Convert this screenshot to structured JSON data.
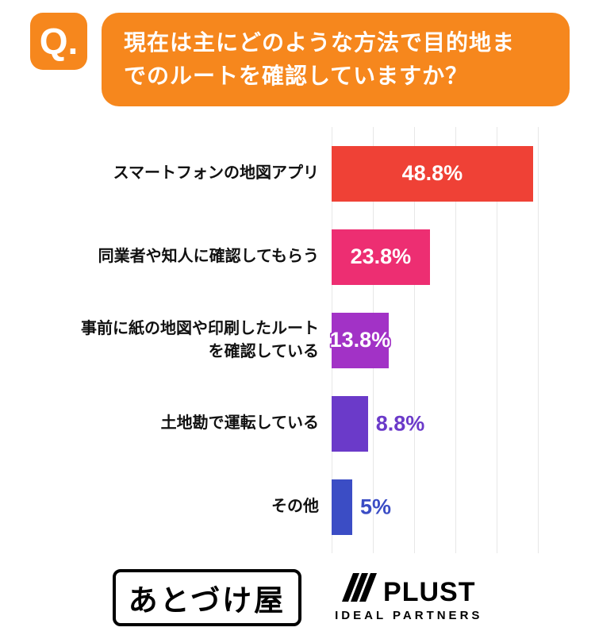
{
  "header": {
    "q_label": "Q.",
    "title": "現在は主にどのような方法で目的地ま\nでのルートを確認していますか？"
  },
  "chart_data": {
    "type": "bar",
    "orientation": "horizontal",
    "title": "現在は主にどのような方法で目的地までのルートを確認していますか？",
    "categories": [
      "スマートフォンの地図アプリ",
      "同業者や知人に確認してもらう",
      "事前に紙の地図や印刷したルート\nを確認している",
      "土地勘で運転している",
      "その他"
    ],
    "values": [
      48.8,
      23.8,
      13.8,
      8.8,
      5
    ],
    "value_labels": [
      "48.8%",
      "23.8%",
      "13.8%",
      "8.8%",
      "5%"
    ],
    "bar_colors": [
      "#EF4136",
      "#ED2E72",
      "#A232C6",
      "#6B3AC9",
      "#3B4DC5"
    ],
    "label_position": [
      "inside",
      "inside",
      "edge",
      "outside",
      "outside"
    ],
    "xlim": [
      0,
      50
    ],
    "grid": true,
    "gridline_interval": 10,
    "legend": "none"
  },
  "footer": {
    "logo_left_text": "あとづけ屋",
    "logo_right_name": "PLUST",
    "logo_right_subtitle": "IDEAL PARTNERS"
  },
  "colors": {
    "accent_orange": "#F6871D",
    "gridline": "#E7E7E7"
  }
}
